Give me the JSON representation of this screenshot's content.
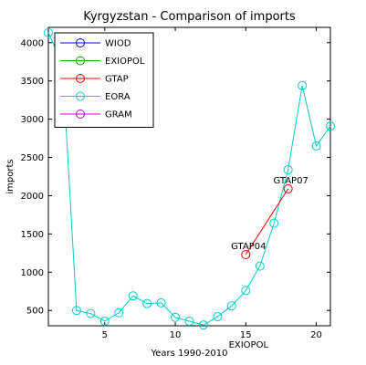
{
  "chart_data": {
    "type": "line",
    "title": "Kyrgyzstan - Comparison of imports",
    "xlabel": "Years 1990-2010",
    "ylabel": "imports",
    "xlim": [
      1,
      21
    ],
    "ylim": [
      300,
      4200
    ],
    "xticks": [
      5,
      10,
      15,
      20
    ],
    "yticks": [
      500,
      1000,
      1500,
      2000,
      2500,
      3000,
      3500,
      4000
    ],
    "grid": false,
    "legend_position": "top-left",
    "legend": [
      {
        "name": "WIOD",
        "color": "#0000ff"
      },
      {
        "name": "EXIOPOL",
        "color": "#00aa00"
      },
      {
        "name": "GTAP",
        "color": "#ff0000"
      },
      {
        "name": "EORA",
        "color": "#00cccc"
      },
      {
        "name": "GRAM",
        "color": "#cc00cc"
      }
    ],
    "series": [
      {
        "name": "EORA",
        "color": "#00cccc",
        "x": [
          1,
          2,
          3,
          4,
          5,
          6,
          7,
          8,
          9,
          10,
          11,
          12,
          13,
          14,
          15,
          16,
          17,
          18,
          19,
          20,
          21
        ],
        "y": [
          4130,
          3720,
          500,
          460,
          360,
          470,
          690,
          590,
          600,
          410,
          360,
          310,
          420,
          560,
          760,
          1080,
          1640,
          2340,
          3440,
          2650,
          2910
        ]
      },
      {
        "name": "GTAP",
        "color": "#ff0000",
        "x": [
          15,
          18
        ],
        "y": [
          1230,
          2090
        ]
      }
    ],
    "annotations": [
      {
        "text": "GTAP04",
        "x": 15,
        "y": 1230
      },
      {
        "text": "GTAP07",
        "x": 18,
        "y": 2090
      },
      {
        "text": "EXIOPOL",
        "x": 15,
        "y": 300
      }
    ]
  }
}
